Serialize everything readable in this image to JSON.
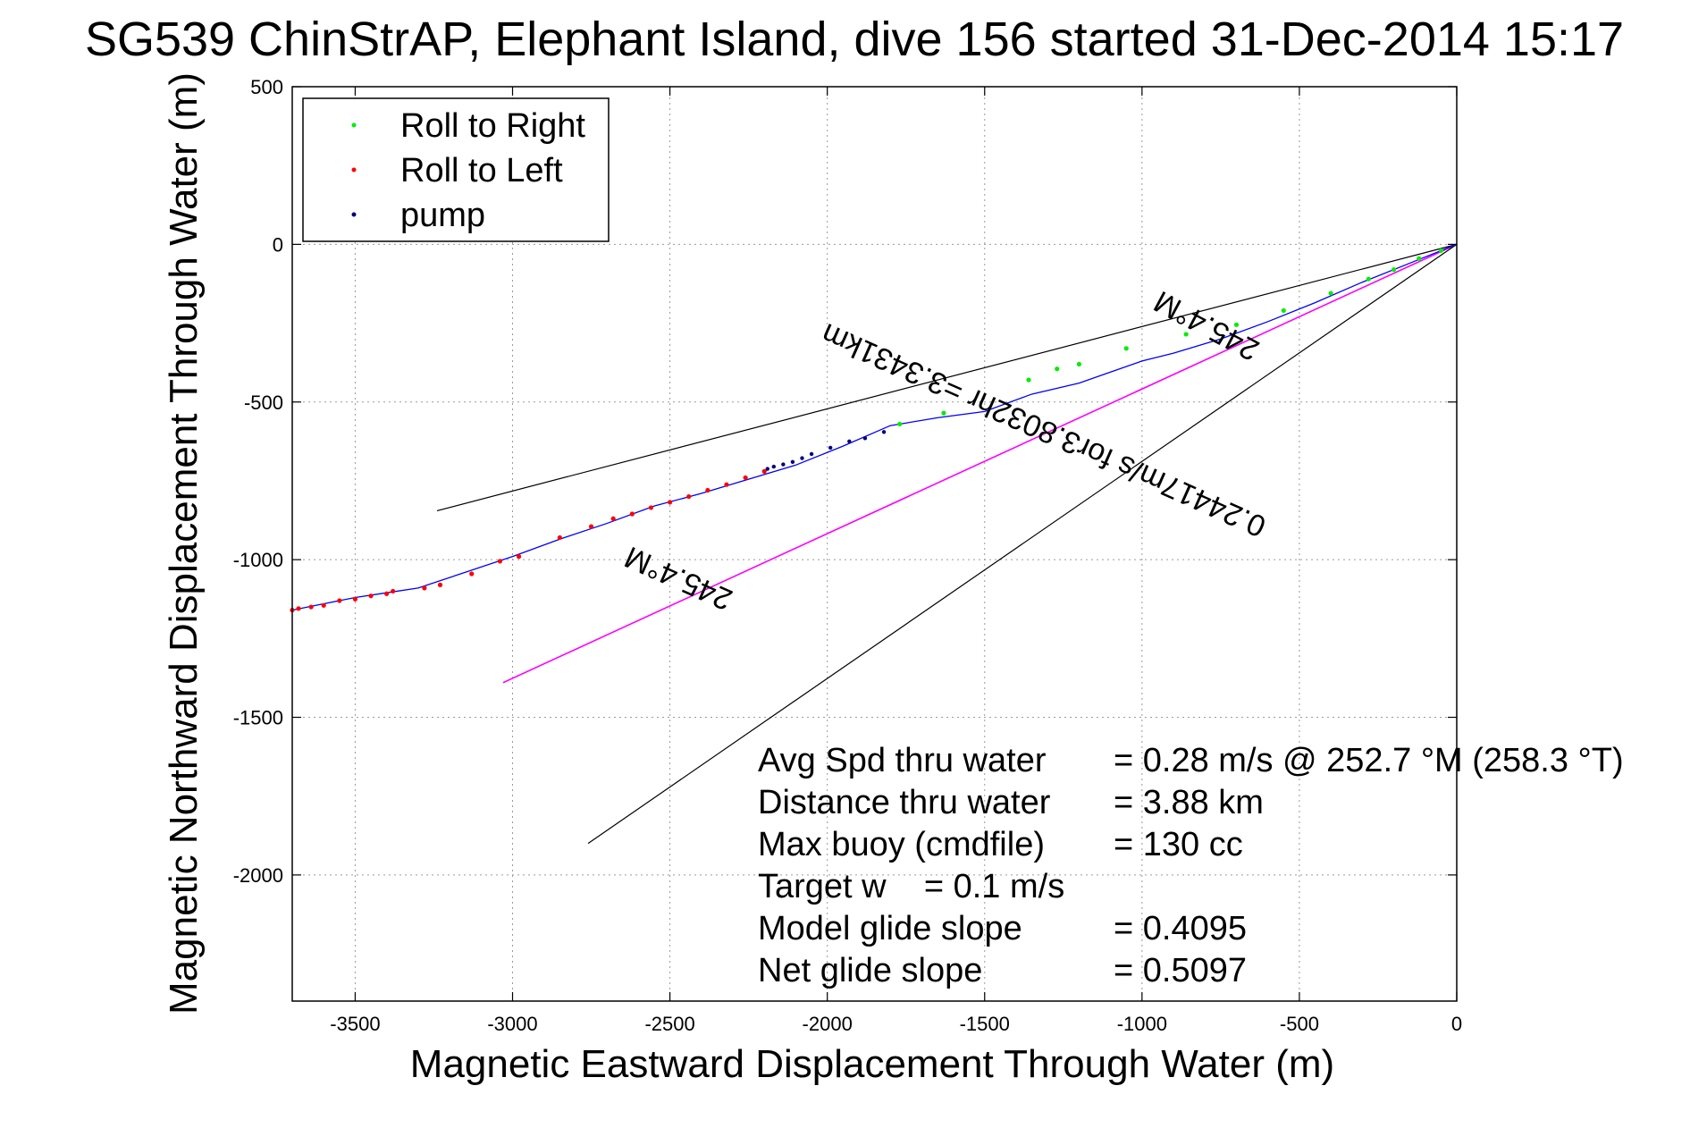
{
  "chart_data": {
    "type": "line",
    "title": "SG539 ChinStrAP, Elephant Island, dive 156 started 31-Dec-2014 15:17",
    "xlabel": "Magnetic Eastward Displacement Through Water (m)",
    "ylabel": "Magnetic Northward Displacement Through Water (m)",
    "xlim": [
      -3700,
      0
    ],
    "ylim": [
      -2400,
      500
    ],
    "xticks": [
      -3500,
      -3000,
      -2500,
      -2000,
      -1500,
      -1000,
      -500,
      0
    ],
    "yticks": [
      500,
      0,
      -500,
      -1000,
      -1500,
      -2000
    ],
    "grid": true,
    "legend": {
      "placement": "top-left",
      "entries": [
        {
          "label": "Roll to Right",
          "color": "#00ee00"
        },
        {
          "label": "Roll to Left",
          "color": "#ff0000"
        },
        {
          "label": "pump",
          "color": "#000080"
        }
      ]
    },
    "track": {
      "name": "track",
      "color": "#0000ff",
      "x": [
        0,
        -150,
        -300,
        -450,
        -600,
        -750,
        -900,
        -1000,
        -1100,
        -1200,
        -1350,
        -1500,
        -1650,
        -1800,
        -1950,
        -2100,
        -2250,
        -2400,
        -2550,
        -2700,
        -2850,
        -3000,
        -3150,
        -3300,
        -3400,
        -3500,
        -3600,
        -3700
      ],
      "y": [
        0,
        -60,
        -120,
        -185,
        -245,
        -300,
        -345,
        -370,
        -405,
        -440,
        -475,
        -530,
        -550,
        -575,
        -640,
        -700,
        -745,
        -790,
        -830,
        -885,
        -935,
        -990,
        -1040,
        -1090,
        -1105,
        -1120,
        -1140,
        -1160
      ]
    },
    "roll_right_points": {
      "x": [
        -50,
        -120,
        -200,
        -280,
        -400,
        -550,
        -700,
        -860,
        -1050,
        -1200,
        -1270,
        -1360,
        -1630,
        -1770
      ],
      "y": [
        -20,
        -45,
        -80,
        -110,
        -155,
        -210,
        -255,
        -285,
        -330,
        -380,
        -395,
        -430,
        -535,
        -570
      ]
    },
    "roll_left_points": {
      "x": [
        -2200,
        -2260,
        -2320,
        -2380,
        -2440,
        -2500,
        -2560,
        -2620,
        -2680,
        -2750,
        -2850,
        -2980,
        -3040,
        -3130,
        -3230,
        -3280,
        -3380,
        -3400,
        -3450,
        -3500,
        -3550,
        -3600,
        -3640,
        -3680,
        -3700
      ],
      "y": [
        -720,
        -740,
        -762,
        -780,
        -800,
        -818,
        -835,
        -855,
        -870,
        -895,
        -930,
        -990,
        -1005,
        -1045,
        -1080,
        -1090,
        -1100,
        -1108,
        -1115,
        -1125,
        -1130,
        -1145,
        -1150,
        -1155,
        -1160
      ]
    },
    "pump_points": {
      "x": [
        -1820,
        -1880,
        -1930,
        -1990,
        -2050,
        -2080,
        -2110,
        -2140,
        -2170,
        -2190
      ],
      "y": [
        -595,
        -615,
        -625,
        -645,
        -665,
        -678,
        -690,
        -698,
        -705,
        -712
      ]
    },
    "reference_lines": [
      {
        "name": "upper-bound-line",
        "color": "#000000",
        "x": [
          0,
          -3240
        ],
        "y": [
          0,
          -845
        ]
      },
      {
        "name": "heading-line",
        "color": "#ff00ff",
        "x": [
          0,
          -3030
        ],
        "y": [
          0,
          -1390
        ]
      },
      {
        "name": "lower-bound-line",
        "color": "#000000",
        "x": [
          0,
          -2760
        ],
        "y": [
          0,
          -1900
        ]
      }
    ],
    "line_labels": [
      {
        "text": "245.4°M",
        "x": -780,
        "y": -230,
        "angle": 208
      },
      {
        "text": "0.24417m/s for3.8032hr =3.3431km",
        "x": -1300,
        "y": -560,
        "angle": 204
      },
      {
        "text": "245.4°M",
        "x": -2460,
        "y": -1030,
        "angle": 204
      }
    ],
    "annotations": [
      {
        "label": "Avg Spd thru water",
        "value": "=  0.28 m/s @ 252.7 °M (258.3 °T)"
      },
      {
        "label": "Distance thru water",
        "value": "=  3.88 km"
      },
      {
        "label": "Max buoy (cmdfile)",
        "value": "= 130 cc"
      },
      {
        "label": "Target w    = 0.1 m/s",
        "value": ""
      },
      {
        "label": "Model glide slope",
        "value": "= 0.4095"
      },
      {
        "label": "Net glide slope",
        "value": "= 0.5097"
      }
    ]
  }
}
